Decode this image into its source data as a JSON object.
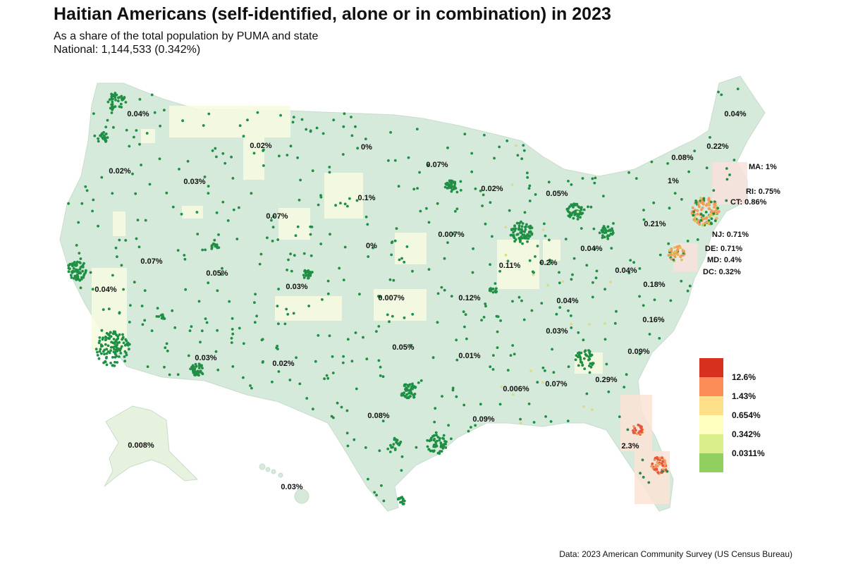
{
  "title": "Haitian Americans (self-identified, alone or in combination) in 2023",
  "subtitle_line1": "As a share of the total population by PUMA and state",
  "subtitle_line2": "National: 1,144,533 (0.342%)",
  "source": "Data: 2023 American Community Survey (US Census Bureau)",
  "colors": {
    "land": "#d5eadb",
    "alaska": "#e6f2dd",
    "pale_yellow": "#f7fce0",
    "northeast": "#f8e2dc",
    "florida_tint": "#fbe3d6",
    "dot": "#1f8f45"
  },
  "legend": [
    {
      "label": "12.6%",
      "color": "#d7301f"
    },
    {
      "label": "1.43%",
      "color": "#fc8d59"
    },
    {
      "label": "0.654%",
      "color": "#fee08b"
    },
    {
      "label": "0.342%",
      "color": "#ffffbf"
    },
    {
      "label": "0.0311%",
      "color": "#d9ef8b"
    },
    {
      "label": "",
      "color": "#91cf60"
    }
  ],
  "state_labels": [
    {
      "text": "0.04%"
    },
    {
      "text": "0.02%"
    },
    {
      "text": "0.03%"
    },
    {
      "text": "0.02%"
    },
    {
      "text": "0%"
    },
    {
      "text": "0.07%"
    },
    {
      "text": "0.1%"
    },
    {
      "text": "0.02%"
    },
    {
      "text": "0.07%"
    },
    {
      "text": "0.007%"
    },
    {
      "text": "0%"
    },
    {
      "text": "0.07%"
    },
    {
      "text": "0.05%"
    },
    {
      "text": "0.03%"
    },
    {
      "text": "0.04%"
    },
    {
      "text": "0.05%"
    },
    {
      "text": "0.11%"
    },
    {
      "text": "0.2%"
    },
    {
      "text": "0.04%"
    },
    {
      "text": "0.21%"
    },
    {
      "text": "0.04%"
    },
    {
      "text": "0.007%"
    },
    {
      "text": "0.12%"
    },
    {
      "text": "0.04%"
    },
    {
      "text": "0.18%"
    },
    {
      "text": "0.03%"
    },
    {
      "text": "0.16%"
    },
    {
      "text": "0.05%"
    },
    {
      "text": "0.01%"
    },
    {
      "text": "0.09%"
    },
    {
      "text": "0.03%"
    },
    {
      "text": "0.02%"
    },
    {
      "text": "0.006%"
    },
    {
      "text": "0.07%"
    },
    {
      "text": "0.29%"
    },
    {
      "text": "0.08%"
    },
    {
      "text": "0.09%"
    },
    {
      "text": "2.3%"
    },
    {
      "text": "0.008%"
    },
    {
      "text": "0.03%"
    },
    {
      "text": "0.04%"
    },
    {
      "text": "0.22%"
    },
    {
      "text": "0.08%"
    },
    {
      "text": "1%"
    },
    {
      "text": "MA: 1%"
    },
    {
      "text": "RI: 0.75%"
    },
    {
      "text": "CT: 0.86%"
    },
    {
      "text": "NJ: 0.71%"
    },
    {
      "text": "DE: 0.71%"
    },
    {
      "text": "MD: 0.4%"
    },
    {
      "text": "DC: 0.32%"
    }
  ]
}
